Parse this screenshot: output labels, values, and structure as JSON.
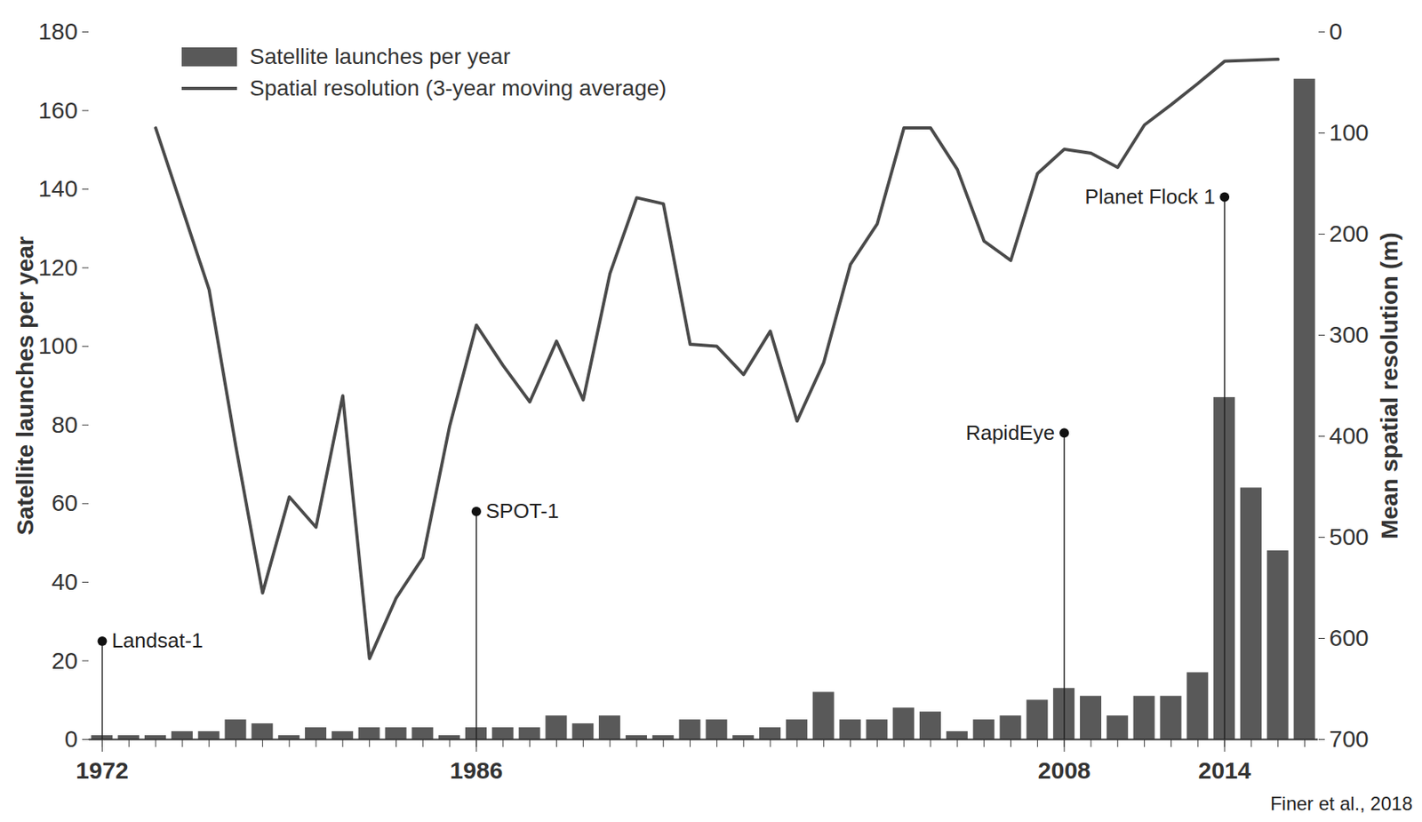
{
  "chart_data": {
    "type": "bar",
    "x": [
      1972,
      1973,
      1974,
      1975,
      1976,
      1977,
      1978,
      1979,
      1980,
      1981,
      1982,
      1983,
      1984,
      1985,
      1986,
      1987,
      1988,
      1989,
      1990,
      1991,
      1992,
      1993,
      1994,
      1995,
      1996,
      1997,
      1998,
      1999,
      2000,
      2001,
      2002,
      2003,
      2004,
      2005,
      2006,
      2007,
      2008,
      2009,
      2010,
      2011,
      2012,
      2013,
      2014,
      2015,
      2016,
      2017
    ],
    "series": [
      {
        "name": "Satellite launches per year",
        "type": "bar",
        "color": "#595959",
        "values": [
          1,
          1,
          1,
          2,
          2,
          5,
          4,
          1,
          3,
          2,
          3,
          3,
          3,
          1,
          3,
          3,
          3,
          6,
          4,
          6,
          1,
          1,
          5,
          5,
          1,
          3,
          5,
          12,
          5,
          5,
          8,
          7,
          2,
          5,
          6,
          10,
          13,
          11,
          6,
          11,
          11,
          17,
          87,
          64,
          48,
          168
        ]
      },
      {
        "name": "Spatial resolution (3-year moving average)",
        "type": "line",
        "axis": "y2",
        "color": "#4a4a4a",
        "values": [
          null,
          null,
          95,
          175,
          255,
          410,
          555,
          460,
          490,
          360,
          620,
          560,
          520,
          390,
          290,
          330,
          366,
          306,
          364,
          239,
          164,
          170,
          309,
          311,
          339,
          296,
          385,
          327,
          230,
          190,
          95,
          95,
          136,
          207,
          226,
          140,
          116,
          120,
          134,
          92,
          72,
          51,
          29,
          28,
          27,
          null
        ]
      }
    ],
    "ylabel": "Satellite launches per year",
    "y2label": "Mean spatial resolution (m)",
    "xlim": [
      1971.5,
      2017.5
    ],
    "xticks": [
      1972,
      1986,
      2008,
      2014
    ],
    "ylim": [
      0,
      180
    ],
    "yticks": [
      0,
      20,
      40,
      60,
      80,
      100,
      120,
      140,
      160,
      180
    ],
    "y2lim": [
      700,
      0
    ],
    "y2ticks": [
      0,
      100,
      200,
      300,
      400,
      500,
      600,
      700
    ],
    "legend": "top-left",
    "annotations": [
      {
        "text": "Landsat-1",
        "x": 1972,
        "y": 25
      },
      {
        "text": "SPOT-1",
        "x": 1986,
        "y": 58
      },
      {
        "text": "RapidEye",
        "x": 2008,
        "y": 78
      },
      {
        "text": "Planet Flock 1",
        "x": 2014,
        "y": 138
      }
    ],
    "source": "Finer et al., 2018"
  }
}
